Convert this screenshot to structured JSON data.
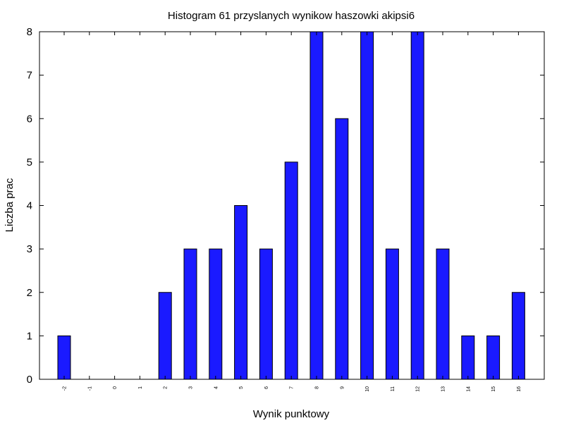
{
  "chart_data": {
    "type": "bar",
    "title": "Histogram 61 przyslanych wynikow haszowki akipsi6",
    "xlabel": "Wynik punktowy",
    "ylabel": "Liczba prac",
    "categories": [
      "-2",
      "-1",
      "0",
      "1",
      "2",
      "3",
      "4",
      "5",
      "6",
      "7",
      "8",
      "9",
      "10",
      "11",
      "12",
      "13",
      "14",
      "15",
      "16"
    ],
    "values": [
      1,
      0,
      0,
      0,
      2,
      3,
      3,
      4,
      3,
      5,
      8,
      6,
      8,
      3,
      8,
      3,
      1,
      1,
      2
    ],
    "ylim": [
      0,
      8
    ],
    "yticks": [
      "0",
      "1",
      "2",
      "3",
      "4",
      "5",
      "6",
      "7",
      "8"
    ],
    "grid": false,
    "bar_color": "#1a1aff"
  }
}
